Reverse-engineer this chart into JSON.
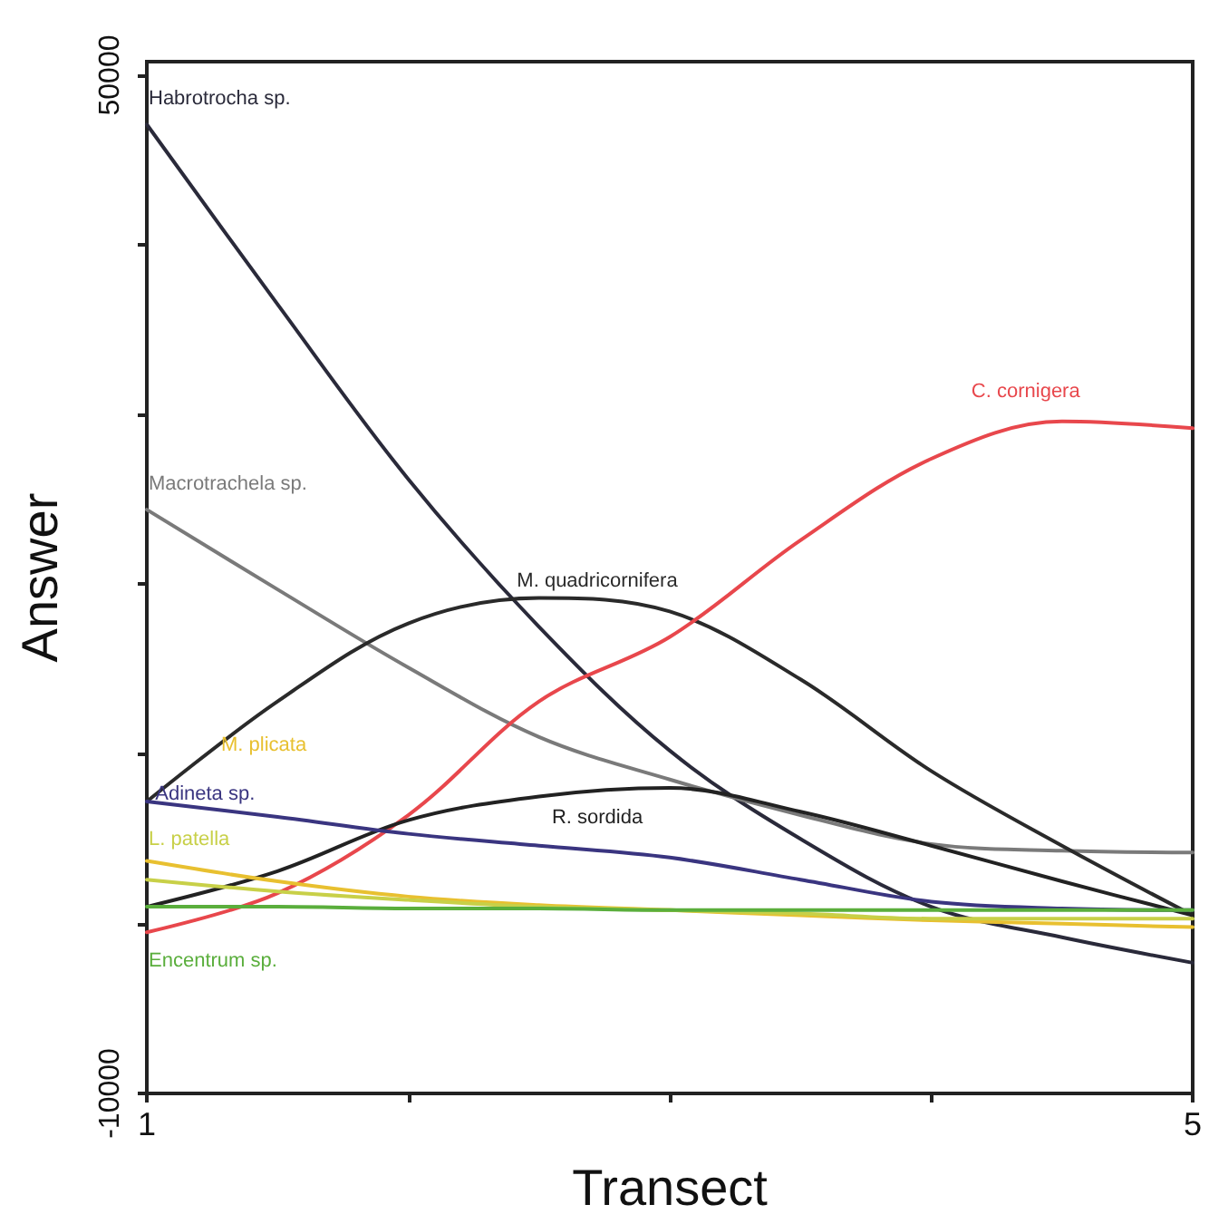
{
  "chart_data": {
    "type": "line",
    "xlabel": "Transect",
    "ylabel": "Answer",
    "x": [
      1,
      1.5,
      2,
      2.5,
      3,
      3.5,
      4,
      4.5,
      5
    ],
    "xlim": [
      1,
      5
    ],
    "xticks": [
      1,
      {
        "value": 2,
        "label": null
      },
      {
        "value": 3,
        "label": null
      },
      {
        "value": 4,
        "label": null
      },
      5
    ],
    "ylim": [
      -10000,
      50800
    ],
    "yticks": [
      -10000,
      {
        "value": 0,
        "label": null
      },
      {
        "value": 10000,
        "label": null
      },
      {
        "value": 20000,
        "label": null
      },
      {
        "value": 30000,
        "label": null
      },
      {
        "value": 40000,
        "label": null
      },
      50000
    ],
    "grid": false,
    "legend": false,
    "marker": "none",
    "line_style": "solid",
    "series": [
      {
        "name": "Habrotrocha sp.",
        "color": "#2a2a3a",
        "values": [
          47100,
          36500,
          26200,
          17500,
          10200,
          5000,
          1000,
          -800,
          -2300
        ]
      },
      {
        "name": "Macrotrachela sp.",
        "color": "#7a7a7a",
        "values": [
          24400,
          19700,
          15100,
          11000,
          8500,
          6400,
          4700,
          4300,
          4200
        ]
      },
      {
        "name": "M. quadricornifera",
        "color": "#2a2a2a",
        "values": [
          7200,
          13100,
          17700,
          19200,
          18400,
          14400,
          9000,
          4600,
          500
        ]
      },
      {
        "name": "C. cornigera",
        "color": "#e8474c",
        "values": [
          -500,
          1800,
          6400,
          13100,
          16900,
          22600,
          27400,
          29600,
          29200
        ]
      },
      {
        "name": "R. sordida",
        "color": "#222222",
        "values": [
          1000,
          3100,
          6100,
          7500,
          8000,
          6600,
          4600,
          2500,
          500
        ]
      },
      {
        "name": "Adineta sp.",
        "color": "#3a3580",
        "values": [
          7200,
          6300,
          5300,
          4600,
          3900,
          2600,
          1300,
          900,
          800
        ]
      },
      {
        "name": "M. plicata",
        "color": "#e8c030",
        "values": [
          3700,
          2500,
          1600,
          1100,
          800,
          500,
          200,
          0,
          -200
        ]
      },
      {
        "name": "L. patella",
        "color": "#c8d048",
        "values": [
          2600,
          1900,
          1400,
          1000,
          800,
          600,
          300,
          300,
          300
        ]
      },
      {
        "name": "Encentrum sp.",
        "color": "#5aae3c",
        "values": [
          1000,
          1000,
          900,
          900,
          800,
          800,
          800,
          800,
          800
        ]
      }
    ]
  }
}
